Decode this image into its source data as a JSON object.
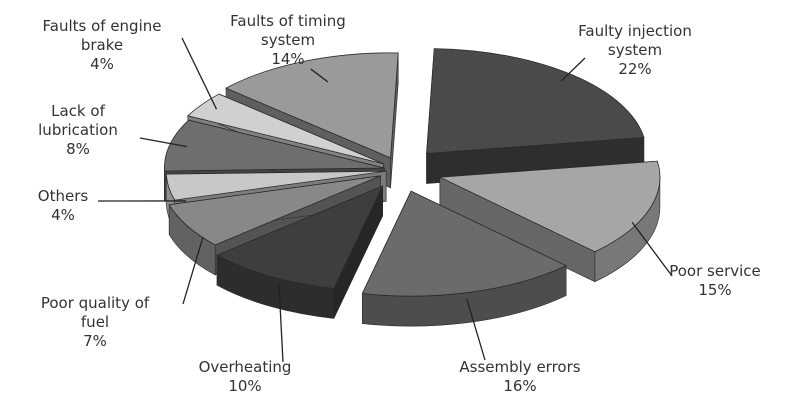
{
  "chart_data": {
    "type": "pie",
    "style": "3d-exploded",
    "legend": "none",
    "slices": [
      {
        "name": "Faulty injection system",
        "value": 22,
        "label": "22%",
        "color": "#4a4a4a"
      },
      {
        "name": "Poor service",
        "value": 15,
        "label": "15%",
        "color": "#a6a6a6"
      },
      {
        "name": "Assembly errors",
        "value": 16,
        "label": "16%",
        "color": "#6b6b6b"
      },
      {
        "name": "Overheating",
        "value": 10,
        "label": "10%",
        "color": "#3e3e3e"
      },
      {
        "name": "Poor quality of fuel",
        "value": 7,
        "label": "7%",
        "color": "#888888"
      },
      {
        "name": "Others",
        "value": 4,
        "label": "4%",
        "color": "#c8c8c8"
      },
      {
        "name": "Lack of lubrication",
        "value": 8,
        "label": "8%",
        "color": "#6e6e6e"
      },
      {
        "name": "Faults of engine brake",
        "value": 4,
        "label": "4%",
        "color": "#d0d0d0"
      },
      {
        "name": "Faults of timing system",
        "value": 14,
        "label": "14%",
        "color": "#9a9a9a"
      }
    ]
  }
}
